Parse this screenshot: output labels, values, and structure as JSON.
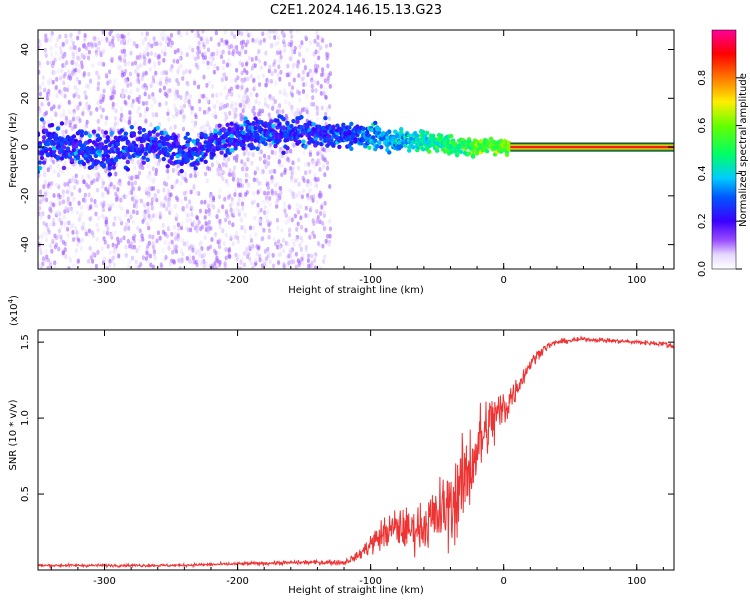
{
  "figure_title": "C2E1.2024.146.15.13.G23",
  "chart_data": [
    {
      "type": "heatmap",
      "title": "C2E1.2024.146.15.13.G23",
      "xlabel": "Height of straight line (km)",
      "ylabel": "Frequency (Hz)",
      "xlim": [
        -350,
        128
      ],
      "ylim": [
        -50,
        48
      ],
      "x_ticks": [
        -300,
        -200,
        -100,
        0,
        100
      ],
      "x_tick_labels": [
        "-300",
        "-200",
        "-100",
        "0",
        "100"
      ],
      "y_ticks": [
        -40,
        -20,
        0,
        20,
        40
      ],
      "y_tick_labels": [
        "-40",
        "-20",
        "0",
        "20",
        "40"
      ],
      "colorbar": {
        "label": "Normalized spectral amplitude",
        "range": [
          0,
          1
        ],
        "ticks": [
          0.0,
          0.2,
          0.4,
          0.6,
          0.8
        ],
        "tick_labels": [
          "0.0",
          "0.2",
          "0.4",
          "0.6",
          "0.8"
        ],
        "colormap": "rainbow (white → violet → blue → cyan → green → yellow → orange → red → magenta)"
      },
      "features": {
        "noise_floor_region_km": [
          -350,
          -130
        ],
        "transition_region_km": [
          -130,
          5
        ],
        "clean_tone_region_km": [
          5,
          128
        ],
        "carrier_frequency_hz": 0
      },
      "ridge_center_hz": [
        {
          "x": -340,
          "y": 2
        },
        {
          "x": -300,
          "y": -2
        },
        {
          "x": -260,
          "y": 2
        },
        {
          "x": -240,
          "y": -3
        },
        {
          "x": -220,
          "y": 1
        },
        {
          "x": -200,
          "y": 5
        },
        {
          "x": -160,
          "y": 6
        },
        {
          "x": -130,
          "y": 5
        },
        {
          "x": -100,
          "y": 4
        },
        {
          "x": -70,
          "y": 3
        },
        {
          "x": -50,
          "y": 2
        },
        {
          "x": -30,
          "y": 0
        },
        {
          "x": -10,
          "y": 1
        },
        {
          "x": 5,
          "y": 0
        },
        {
          "x": 128,
          "y": 0
        }
      ]
    },
    {
      "type": "line",
      "title": "",
      "xlabel": "Height of straight line (km)",
      "ylabel": "SNR (10 * v/v)",
      "y_multiplier_label": "(x10",
      "y_multiplier_exp": "4",
      "y_multiplier_close": ")",
      "xlim": [
        -350,
        128
      ],
      "ylim": [
        0,
        1.58
      ],
      "x_ticks": [
        -300,
        -200,
        -100,
        0,
        100
      ],
      "x_tick_labels": [
        "-300",
        "-200",
        "-100",
        "0",
        "100"
      ],
      "y_ticks": [
        0.5,
        1.0,
        1.5
      ],
      "y_tick_labels": [
        "0.5",
        "1.0",
        "1.5"
      ],
      "series": [
        {
          "color": "#ee3333",
          "x": [
            -350,
            -300,
            -250,
            -200,
            -150,
            -120,
            -110,
            -100,
            -90,
            -80,
            -70,
            -60,
            -50,
            -40,
            -30,
            -20,
            -10,
            0,
            10,
            20,
            30,
            40,
            60,
            80,
            100,
            120,
            128
          ],
          "y": [
            0.03,
            0.03,
            0.03,
            0.04,
            0.05,
            0.05,
            0.09,
            0.17,
            0.24,
            0.28,
            0.26,
            0.3,
            0.35,
            0.42,
            0.58,
            0.8,
            0.97,
            1.06,
            1.2,
            1.36,
            1.46,
            1.5,
            1.52,
            1.51,
            1.5,
            1.49,
            1.47
          ],
          "jitter": [
            0.01,
            0.01,
            0.01,
            0.012,
            0.015,
            0.02,
            0.03,
            0.08,
            0.12,
            0.15,
            0.15,
            0.18,
            0.25,
            0.3,
            0.33,
            0.3,
            0.22,
            0.18,
            0.08,
            0.05,
            0.03,
            0.02,
            0.015,
            0.015,
            0.015,
            0.02,
            0.02
          ]
        }
      ]
    }
  ]
}
